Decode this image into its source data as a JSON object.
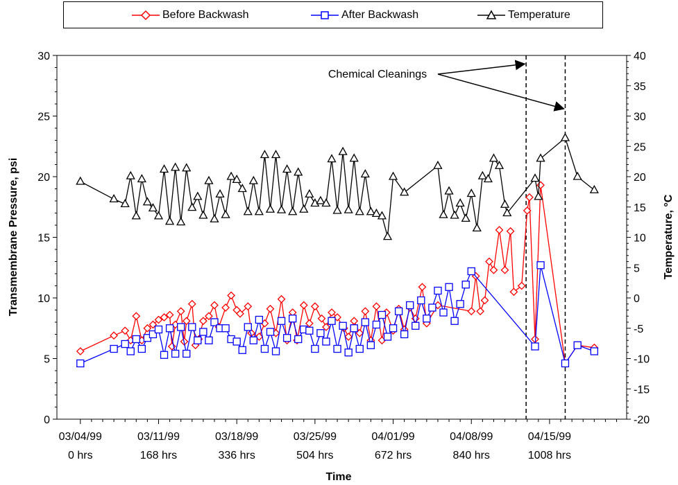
{
  "chart_data": {
    "type": "line",
    "xlabel": "Time",
    "ylabel": "Transmembrane Pressure, psi",
    "y2label": "Temperature, °C",
    "ylim": [
      0,
      30
    ],
    "y2lim": [
      -20,
      40
    ],
    "xlim": [
      -2.1,
      48.9
    ],
    "yticks": [
      "0",
      "5",
      "10",
      "15",
      "20",
      "25",
      "30"
    ],
    "y2ticks": [
      "-20",
      "-15",
      "-10",
      "-5",
      "0",
      "5",
      "10",
      "15",
      "20",
      "25",
      "30",
      "35",
      "40"
    ],
    "xticks": [
      {
        "x": 0,
        "date": "03/04/99",
        "hrs": "0 hrs"
      },
      {
        "x": 7,
        "date": "03/11/99",
        "hrs": "168 hrs"
      },
      {
        "x": 14,
        "date": "03/18/99",
        "hrs": "336 hrs"
      },
      {
        "x": 21,
        "date": "03/25/99",
        "hrs": "504 hrs"
      },
      {
        "x": 28,
        "date": "04/01/99",
        "hrs": "672 hrs"
      },
      {
        "x": 35,
        "date": "04/08/99",
        "hrs": "840 hrs"
      },
      {
        "x": 42,
        "date": "04/15/99",
        "hrs": "1008 hrs"
      }
    ],
    "legend_position": "top",
    "annotation": {
      "text": "Chemical Cleanings",
      "targets": [
        {
          "x": 39.9,
          "y": 29.3
        },
        {
          "x": 43.4,
          "y": 25.6
        }
      ]
    },
    "vlines": [
      39.9,
      43.4
    ],
    "series": [
      {
        "name": "Before Backwash",
        "color": "#ff0000",
        "marker": "diamond",
        "axis": "left",
        "points": [
          [
            0,
            5.6
          ],
          [
            3,
            6.9
          ],
          [
            4,
            7.3
          ],
          [
            4.5,
            6.5
          ],
          [
            5,
            8.5
          ],
          [
            5.5,
            6.5
          ],
          [
            6,
            7.5
          ],
          [
            6.5,
            7.8
          ],
          [
            7,
            8.2
          ],
          [
            7.5,
            8.4
          ],
          [
            8,
            8.6
          ],
          [
            8.2,
            6.0
          ],
          [
            8.5,
            7.8
          ],
          [
            9,
            8.9
          ],
          [
            9.3,
            6.4
          ],
          [
            9.5,
            8.1
          ],
          [
            10,
            9.5
          ],
          [
            10.3,
            6.1
          ],
          [
            10.6,
            6.6
          ],
          [
            11,
            8.1
          ],
          [
            11.5,
            8.5
          ],
          [
            12,
            9.4
          ],
          [
            12.4,
            7.6
          ],
          [
            13,
            9.2
          ],
          [
            13.5,
            10.2
          ],
          [
            14,
            9.0
          ],
          [
            14.3,
            8.7
          ],
          [
            15,
            9.3
          ],
          [
            15.3,
            7.1
          ],
          [
            16,
            6.8
          ],
          [
            16.5,
            7.9
          ],
          [
            17,
            9.1
          ],
          [
            17.5,
            7.1
          ],
          [
            18,
            9.9
          ],
          [
            18.5,
            6.5
          ],
          [
            19,
            8.8
          ],
          [
            19.4,
            6.5
          ],
          [
            20,
            9.4
          ],
          [
            20.5,
            7.9
          ],
          [
            21,
            9.3
          ],
          [
            21.6,
            8.3
          ],
          [
            22,
            7.6
          ],
          [
            22.5,
            8.8
          ],
          [
            23,
            8.4
          ],
          [
            23.6,
            7.5
          ],
          [
            24,
            6.8
          ],
          [
            24.5,
            8.1
          ],
          [
            25,
            7.1
          ],
          [
            25.5,
            8.9
          ],
          [
            26,
            6.5
          ],
          [
            26.5,
            9.3
          ],
          [
            27,
            6.5
          ],
          [
            27.4,
            8.8
          ],
          [
            28,
            7.3
          ],
          [
            28.5,
            9.1
          ],
          [
            29,
            7.4
          ],
          [
            29.5,
            9.2
          ],
          [
            30,
            8.3
          ],
          [
            30.6,
            10.9
          ],
          [
            31,
            7.9
          ],
          [
            32,
            9.4
          ],
          [
            35,
            8.9
          ],
          [
            35.4,
            11.8
          ],
          [
            35.8,
            8.9
          ],
          [
            36.2,
            9.8
          ],
          [
            36.6,
            13.0
          ],
          [
            37,
            12.3
          ],
          [
            37.5,
            15.6
          ],
          [
            38,
            12.3
          ],
          [
            38.5,
            15.5
          ],
          [
            38.8,
            10.5
          ],
          [
            39.5,
            11.0
          ],
          [
            40,
            17.2
          ],
          [
            40.2,
            18.3
          ],
          [
            40.7,
            6.6
          ],
          [
            41.2,
            19.3
          ],
          [
            43.4,
            4.6
          ],
          [
            44.5,
            6.1
          ],
          [
            46,
            5.9
          ]
        ]
      },
      {
        "name": "After Backwash",
        "color": "#0000ff",
        "marker": "square",
        "axis": "left",
        "points": [
          [
            0,
            4.6
          ],
          [
            3,
            5.8
          ],
          [
            4,
            6.2
          ],
          [
            4.5,
            5.6
          ],
          [
            5,
            6.6
          ],
          [
            5.5,
            5.8
          ],
          [
            6,
            6.7
          ],
          [
            6.5,
            7.0
          ],
          [
            7,
            7.4
          ],
          [
            7.5,
            5.3
          ],
          [
            8,
            7.5
          ],
          [
            8.5,
            5.4
          ],
          [
            9,
            7.6
          ],
          [
            9.5,
            5.4
          ],
          [
            10,
            7.6
          ],
          [
            10.5,
            6.5
          ],
          [
            11,
            7.2
          ],
          [
            11.5,
            6.5
          ],
          [
            12,
            8.0
          ],
          [
            12.5,
            7.5
          ],
          [
            13,
            7.5
          ],
          [
            13.5,
            6.6
          ],
          [
            14,
            6.4
          ],
          [
            14.5,
            5.7
          ],
          [
            15,
            7.6
          ],
          [
            15.5,
            6.5
          ],
          [
            16,
            8.2
          ],
          [
            16.5,
            5.8
          ],
          [
            17,
            7.2
          ],
          [
            17.5,
            5.6
          ],
          [
            18,
            8.1
          ],
          [
            18.5,
            6.7
          ],
          [
            19,
            8.3
          ],
          [
            19.5,
            6.6
          ],
          [
            20,
            7.4
          ],
          [
            20.5,
            7.3
          ],
          [
            21,
            5.8
          ],
          [
            21.5,
            7.1
          ],
          [
            22,
            6.4
          ],
          [
            22.5,
            8.1
          ],
          [
            23,
            5.8
          ],
          [
            23.5,
            7.7
          ],
          [
            24,
            5.5
          ],
          [
            24.5,
            7.5
          ],
          [
            25,
            5.8
          ],
          [
            25.5,
            8.0
          ],
          [
            26,
            6.1
          ],
          [
            26.5,
            7.8
          ],
          [
            27,
            8.6
          ],
          [
            27.5,
            6.8
          ],
          [
            28,
            7.5
          ],
          [
            28.5,
            8.9
          ],
          [
            29,
            7.0
          ],
          [
            29.5,
            9.4
          ],
          [
            30,
            7.7
          ],
          [
            30.5,
            9.8
          ],
          [
            31,
            8.3
          ],
          [
            31.5,
            9.2
          ],
          [
            32,
            10.6
          ],
          [
            32.5,
            8.8
          ],
          [
            33,
            10.9
          ],
          [
            33.5,
            8.1
          ],
          [
            34,
            9.5
          ],
          [
            34.5,
            11.1
          ],
          [
            35,
            12.2
          ],
          [
            40.7,
            6.0
          ],
          [
            41.2,
            12.7
          ],
          [
            43.4,
            4.6
          ],
          [
            44.5,
            6.1
          ],
          [
            46,
            5.6
          ]
        ]
      },
      {
        "name": "Temperature",
        "color": "#000000",
        "marker": "triangle",
        "axis": "right",
        "points": [
          [
            0,
            19.2
          ],
          [
            3,
            16.3
          ],
          [
            4,
            15.5
          ],
          [
            4.5,
            20.1
          ],
          [
            5,
            13.5
          ],
          [
            5.5,
            19.6
          ],
          [
            6,
            15.8
          ],
          [
            6.5,
            14.8
          ],
          [
            7,
            13.5
          ],
          [
            7.5,
            21.2
          ],
          [
            8,
            12.6
          ],
          [
            8.5,
            21.5
          ],
          [
            9,
            12.5
          ],
          [
            9.5,
            21.4
          ],
          [
            10,
            14.9
          ],
          [
            10.5,
            16.7
          ],
          [
            11,
            13.6
          ],
          [
            11.5,
            19.3
          ],
          [
            12,
            13.0
          ],
          [
            12.5,
            17.1
          ],
          [
            13,
            13.7
          ],
          [
            13.5,
            20.0
          ],
          [
            14,
            19.5
          ],
          [
            14.5,
            18.0
          ],
          [
            15,
            14.2
          ],
          [
            15.5,
            19.3
          ],
          [
            16,
            14.2
          ],
          [
            16.5,
            23.6
          ],
          [
            17,
            14.6
          ],
          [
            17.5,
            23.6
          ],
          [
            18,
            14.5
          ],
          [
            18.5,
            21.2
          ],
          [
            19,
            14.2
          ],
          [
            19.5,
            20.7
          ],
          [
            20,
            14.6
          ],
          [
            20.5,
            17.1
          ],
          [
            21,
            15.6
          ],
          [
            21.5,
            16.0
          ],
          [
            22,
            15.6
          ],
          [
            22.5,
            22.9
          ],
          [
            23,
            14.4
          ],
          [
            23.5,
            24.1
          ],
          [
            24,
            14.5
          ],
          [
            24.5,
            23.0
          ],
          [
            25,
            14.2
          ],
          [
            25.5,
            20.4
          ],
          [
            26,
            14.2
          ],
          [
            26.5,
            13.9
          ],
          [
            27,
            13.5
          ],
          [
            27.5,
            10.1
          ],
          [
            28,
            20.0
          ],
          [
            29,
            17.4
          ],
          [
            32,
            21.8
          ],
          [
            32.5,
            13.7
          ],
          [
            33,
            17.6
          ],
          [
            33.5,
            13.6
          ],
          [
            34,
            15.6
          ],
          [
            34.5,
            13.1
          ],
          [
            35,
            17.2
          ],
          [
            35.5,
            11.5
          ],
          [
            36,
            20.1
          ],
          [
            36.5,
            19.6
          ],
          [
            37,
            23.0
          ],
          [
            37.5,
            21.8
          ],
          [
            38,
            15.4
          ],
          [
            38.2,
            14.0
          ],
          [
            40.7,
            19.7
          ],
          [
            41,
            16.7
          ],
          [
            41.2,
            23.0
          ],
          [
            43.4,
            26.4
          ],
          [
            44.5,
            20.0
          ],
          [
            46,
            17.8
          ]
        ]
      }
    ]
  }
}
